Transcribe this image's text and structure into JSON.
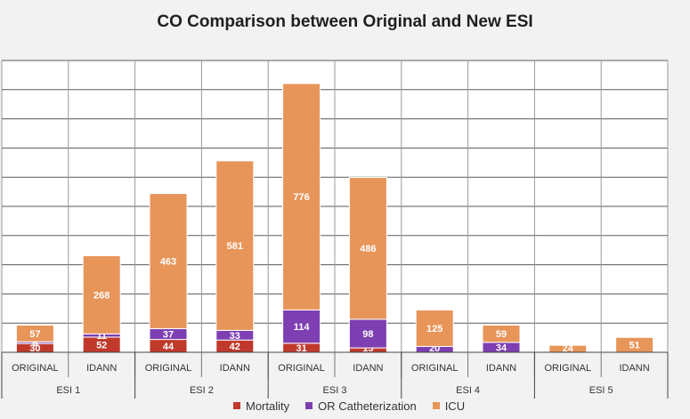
{
  "chart_data": {
    "type": "bar",
    "stacked": true,
    "title": "CO Comparison between Original and New ESI",
    "xlabel": "",
    "ylabel": "",
    "groups": [
      "ESI 1",
      "ESI 2",
      "ESI 3",
      "ESI 4",
      "ESI 5"
    ],
    "categories": [
      "ORIGINAL",
      "IDANN",
      "ORIGINAL",
      "IDANN",
      "ORIGINAL",
      "IDANN",
      "ORIGINAL",
      "IDANN",
      "ORIGINAL",
      "IDANN"
    ],
    "category_group": [
      0,
      0,
      1,
      1,
      2,
      2,
      3,
      3,
      4,
      4
    ],
    "series": [
      {
        "name": "Mortality",
        "color": "#c0392b",
        "values": [
          30,
          52,
          44,
          42,
          31,
          15,
          0,
          0,
          0,
          0
        ]
      },
      {
        "name": "OR Catheterization",
        "color": "#7d3fb2",
        "values": [
          6,
          11,
          37,
          33,
          114,
          98,
          20,
          34,
          0,
          0
        ]
      },
      {
        "name": "ICU",
        "color": "#e8955a",
        "values": [
          57,
          268,
          463,
          581,
          776,
          486,
          125,
          59,
          24,
          51
        ]
      }
    ],
    "data_labels": [
      [
        "30",
        "52",
        "44",
        "42",
        "31",
        "15",
        "",
        "",
        "",
        ""
      ],
      [
        "6",
        "11",
        "37",
        "33",
        "114",
        "98",
        "20",
        "34",
        "",
        ""
      ],
      [
        "57",
        "268",
        "463",
        "581",
        "776",
        "486",
        "125",
        "59",
        "24",
        "51"
      ]
    ],
    "ylim": [
      0,
      1000
    ],
    "grid": true,
    "legend_position": "bottom"
  }
}
